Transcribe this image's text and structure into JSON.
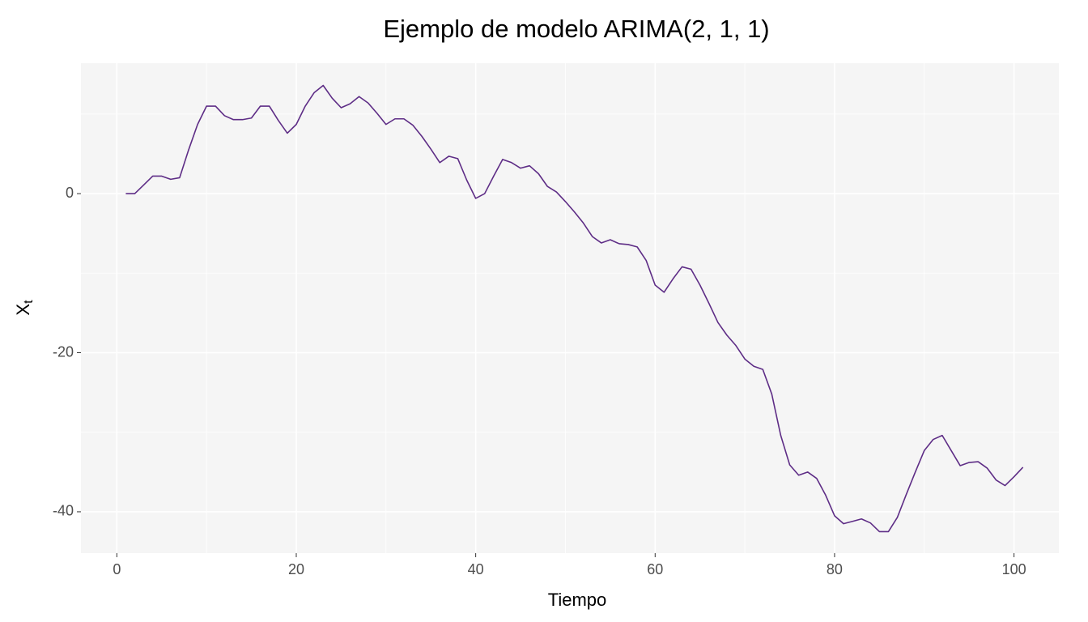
{
  "chart_data": {
    "type": "line",
    "title": "Ejemplo de modelo ARIMA(2, 1, 1)",
    "x_label": "Tiempo",
    "y_label": "X",
    "y_label_sub": "t",
    "x": [
      1,
      2,
      3,
      4,
      5,
      6,
      7,
      8,
      9,
      10,
      11,
      12,
      13,
      14,
      15,
      16,
      17,
      18,
      19,
      20,
      21,
      22,
      23,
      24,
      25,
      26,
      27,
      28,
      29,
      30,
      31,
      32,
      33,
      34,
      35,
      36,
      37,
      38,
      39,
      40,
      41,
      42,
      43,
      44,
      45,
      46,
      47,
      48,
      49,
      50,
      51,
      52,
      53,
      54,
      55,
      56,
      57,
      58,
      59,
      60,
      61,
      62,
      63,
      64,
      65,
      66,
      67,
      68,
      69,
      70,
      71,
      72,
      73,
      74,
      75,
      76,
      77,
      78,
      79,
      80,
      81,
      82,
      83,
      84,
      85,
      86,
      87,
      88,
      89,
      90,
      91,
      92,
      93,
      94,
      95,
      96,
      97,
      98,
      99,
      100,
      101
    ],
    "series": [
      {
        "name": "X",
        "color": "#5e2d86",
        "values": [
          0,
          0,
          1.1,
          2.2,
          2.2,
          1.8,
          2.0,
          5.5,
          8.7,
          11.0,
          11.0,
          9.8,
          9.3,
          9.3,
          9.5,
          11.0,
          11.0,
          9.2,
          7.6,
          8.7,
          11.0,
          12.7,
          13.6,
          12.0,
          10.8,
          11.3,
          12.2,
          11.4,
          10.1,
          8.7,
          9.4,
          9.4,
          8.6,
          7.2,
          5.6,
          3.9,
          4.7,
          4.4,
          1.7,
          -0.6,
          0,
          2.2,
          4.3,
          3.9,
          3.2,
          3.5,
          2.5,
          0.9,
          0.2,
          -1.0,
          -2.3,
          -3.7,
          -5.4,
          -6.2,
          -5.8,
          -6.3,
          -6.4,
          -6.7,
          -8.4,
          -11.5,
          -12.4,
          -10.7,
          -9.2,
          -9.5,
          -11.5,
          -13.8,
          -16.2,
          -17.8,
          -19.1,
          -20.8,
          -21.7,
          -22.1,
          -25.2,
          -30.4,
          -34.1,
          -35.4,
          -35.0,
          -35.8,
          -37.9,
          -40.5,
          -41.5,
          -41.2,
          -40.9,
          -41.4,
          -42.5,
          -42.5,
          -40.7,
          -37.8,
          -35.0,
          -32.3,
          -30.9,
          -30.4,
          -32.3,
          -34.2,
          -33.8,
          -33.7,
          -34.5,
          -36.0,
          -36.7,
          -35.6,
          -34.4
        ]
      }
    ],
    "xlim": [
      -4,
      105
    ],
    "ylim": [
      -45.2,
      16.4
    ],
    "xticks": [
      0,
      20,
      40,
      60,
      80,
      100
    ],
    "yticks": [
      -40,
      -20,
      0
    ],
    "xminor": [
      10,
      30,
      50,
      70,
      90
    ],
    "yminor": [
      -30,
      -10,
      10
    ],
    "grid": true
  }
}
